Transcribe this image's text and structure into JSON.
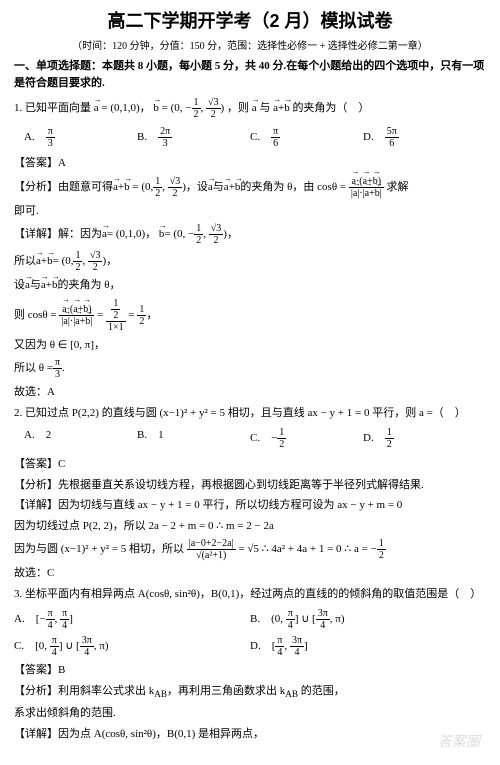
{
  "title": "高二下学期开学考（2 月）模拟试卷",
  "subtitle": "（时间：120 分钟，分值：150 分，范围：选择性必修一 + 选择性必修二第一章）",
  "section1": "一、单项选择题：本题共 8 小题，每小题 5 分，共 40 分.在每个小题给出的四个选项中，只有一项是符合题目要求的.",
  "q1": {
    "stem_a": "1. 已知平面向量",
    "stem_b": "= (0,1,0)，",
    "stem_c": "=",
    "stem_d": "，则",
    "stem_e": "与",
    "stem_f": "的夹角为（　）",
    "optA_label": "A.",
    "optB_label": "B.",
    "optC_label": "C.",
    "optD_label": "D.",
    "ans": "【答案】A",
    "analy_a": "【分析】由题意可得",
    "analy_b": "= (0,",
    "analy_c": ")，设",
    "analy_d": "与",
    "analy_e": "的夹角为 θ，由 cosθ =",
    "analy_f": "求解",
    "analy_g": "即可.",
    "detail_a": "【详解】解：因为",
    "detail_b": "= (0,1,0)，",
    "detail_c": "=",
    "detail_d": "，",
    "line2_a": "所以",
    "line2_b": "= (0,",
    "line2_c": ")，",
    "line3_a": "设",
    "line3_b": "与",
    "line3_c": "的夹角为 θ，",
    "line4_a": "则 cosθ =",
    "line4_b": "=",
    "line4_c": "=",
    "line4_d": "，",
    "line5": "又因为 θ ∈ [0, π]，",
    "line6_a": "所以 θ =",
    "line6_b": ".",
    "line7": "故选：A"
  },
  "q2": {
    "stem": "2. 已知过点 P(2,2) 的直线与圆 (x−1)² + y² = 5 相切，且与直线 ax − y + 1 = 0 平行，则 a =（　）",
    "optA": "A.　2",
    "optB": "B.　1",
    "optC_label": "C.　−",
    "optD_label": "D.　",
    "ans": "【答案】C",
    "analy": "【分析】先根据垂直关系设切线方程，再根据圆心到切线距离等于半径列式解得结果.",
    "detail1": "【详解】因为切线与直线 ax − y + 1 = 0 平行，所以切线方程可设为 ax − y + m = 0",
    "detail2": "因为切线过点 P(2, 2)，所以 2a − 2 + m = 0 ∴ m = 2 − 2a",
    "detail3_a": "因为与圆 (x−1)² + y² = 5 相切，所以",
    "detail3_b": "= √5 ∴ 4a² + 4a + 1 = 0 ∴ a = −",
    "line_end": "故选：C"
  },
  "q3": {
    "stem": "3. 坐标平面内有相异两点 A(cosθ, sin²θ)，B(0,1)，经过两点的直线的的倾斜角的取值范围是（　）",
    "optA_label": "A.",
    "optB_label": "B.",
    "optC_label": "C.",
    "optD_label": "D.",
    "ans": "【答案】B",
    "analy_a": "【分析】利用斜率公式求出 k",
    "analy_b": "，再利用三角函数求出 k",
    "analy_c": " 的范围，",
    "analy_d": "系求出倾斜角的范围.",
    "detail": "【详解】因为点 A(cosθ, sin²θ)，B(0,1) 是相异两点，"
  },
  "frac_vals": {
    "pi": "π",
    "3": "3",
    "2pi": "2π",
    "5pi": "5π",
    "6": "6",
    "1": "1",
    "2": "2",
    "4": "4",
    "neg1": "−1",
    "sqrt3": "√3",
    "half": "½",
    "3pi": "3π",
    "ab": "AB"
  },
  "watermark": "答案圈"
}
